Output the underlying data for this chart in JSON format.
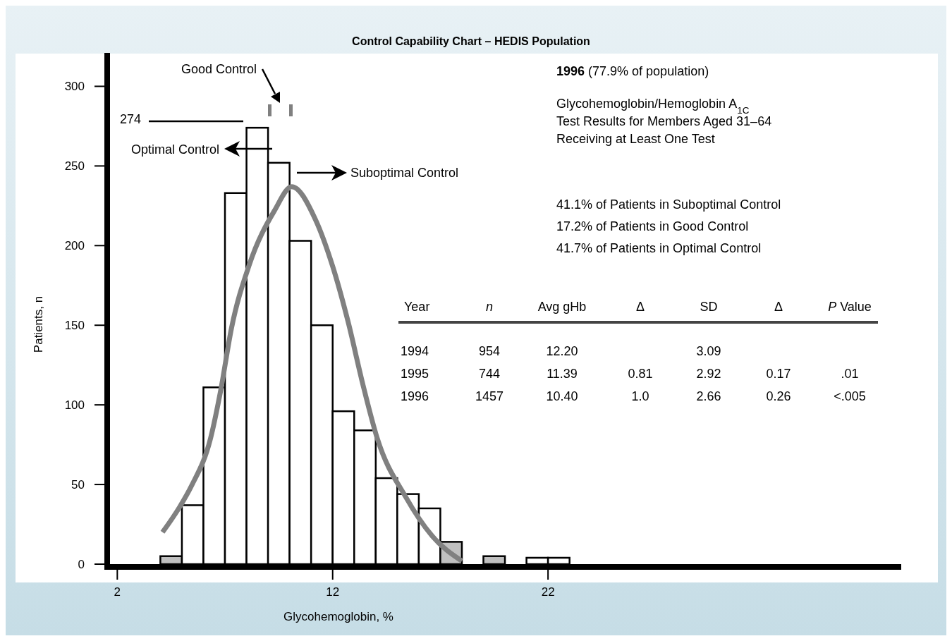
{
  "chart_data": {
    "type": "histogram",
    "title": "Control Capability Chart – HEDIS Population",
    "xlabel": "Glycohemoglobin, %",
    "ylabel": "Patients, n",
    "bins": [
      4,
      5,
      6,
      7,
      8,
      9,
      10,
      11,
      12,
      13,
      14,
      15,
      16,
      17,
      18,
      19,
      20,
      21,
      22,
      23
    ],
    "values": [
      5,
      37,
      111,
      233,
      274,
      252,
      203,
      150,
      96,
      84,
      54,
      44,
      35,
      14,
      0,
      5,
      0,
      4,
      4
    ],
    "colors": [
      "#c0c0c0",
      "#ffffff",
      "#ffffff",
      "#ffffff",
      "#ffffff",
      "#ffffff",
      "#ffffff",
      "#ffffff",
      "#ffffff",
      "#ffffff",
      "#ffffff",
      "#ffffff",
      "#ffffff",
      "#c0c0c0",
      "#ffffff",
      "#c0c0c0",
      "#ffffff",
      "#ffffff",
      "#ffffff"
    ],
    "series": [
      {
        "type": "line",
        "color": "#808080",
        "x": [
          4.1,
          4.9,
          5.44,
          6.33,
          6.8,
          7.3,
          8.13,
          9.3,
          10.1,
          11.18,
          12.0,
          12.72,
          13.4,
          14.07,
          15.4,
          16.6,
          18.0
        ],
        "values": [
          20,
          36,
          49,
          79,
          109,
          148,
          188,
          222,
          237,
          217,
          187,
          152,
          113,
          79,
          42,
          18,
          2
        ]
      }
    ],
    "xlim": [
      1.4,
      38.4
    ],
    "ylim": [
      0,
      321
    ],
    "xticks": [
      2,
      12,
      22
    ],
    "yticks": [
      0,
      50,
      100,
      150,
      200,
      250,
      300
    ],
    "grid": false,
    "annotations": [
      "274",
      "Good Control",
      "Optimal Control",
      "Suboptimal Control",
      "1996 (77.9% of population)",
      "Glycohemoglobin/Hemoglobin A$_{1C}$",
      "Test Results for Members Aged 31–64",
      "Receiving at Least One Test",
      "41.1% of Patients in Suboptimal Control",
      "17.2% of Patients in Good Control",
      "41.7% of Patients in Optimal Control",
      "Year",
      "n",
      "Avg gHb",
      "Δ",
      "SD",
      "Δ",
      "P Value",
      "1994",
      "954",
      "12.20",
      "3.09",
      "1995",
      "744",
      "11.39",
      "0.81",
      "2.92",
      "0.17",
      ".01",
      "1996",
      "1457",
      "10.40",
      "1.0",
      "2.66",
      "0.26",
      "<.005"
    ]
  }
}
